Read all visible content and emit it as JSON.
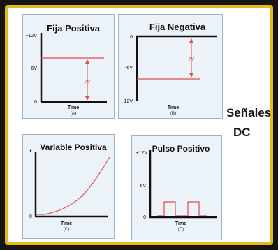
{
  "page": {
    "side_title_line1": "Señales",
    "side_title_line2": "DC"
  },
  "colors": {
    "frame": "#e7b81a",
    "panel_bg": "#ecf3f8",
    "signal": "#e44b4b",
    "axis": "#111111"
  },
  "panels": [
    {
      "id": "A",
      "title": "Fija Positiva",
      "y_ticks": [
        "+12V",
        "6V",
        "0"
      ],
      "x_label": "Time",
      "caption": "(A)",
      "annotation": "7V"
    },
    {
      "id": "B",
      "title": "Fija Negativa",
      "y_ticks": [
        "0",
        "-6V",
        "-12V"
      ],
      "x_label": "Time",
      "caption": "(B)",
      "annotation": "7V"
    },
    {
      "id": "C",
      "title": "Variable Positiva",
      "y_ticks": [
        "•",
        "0"
      ],
      "x_label": "Time",
      "caption": "(C)"
    },
    {
      "id": "D",
      "title": "Pulso Positivo",
      "y_ticks": [
        "+12V",
        "6V",
        "0"
      ],
      "x_label": "Time",
      "caption": "(D)"
    }
  ]
}
